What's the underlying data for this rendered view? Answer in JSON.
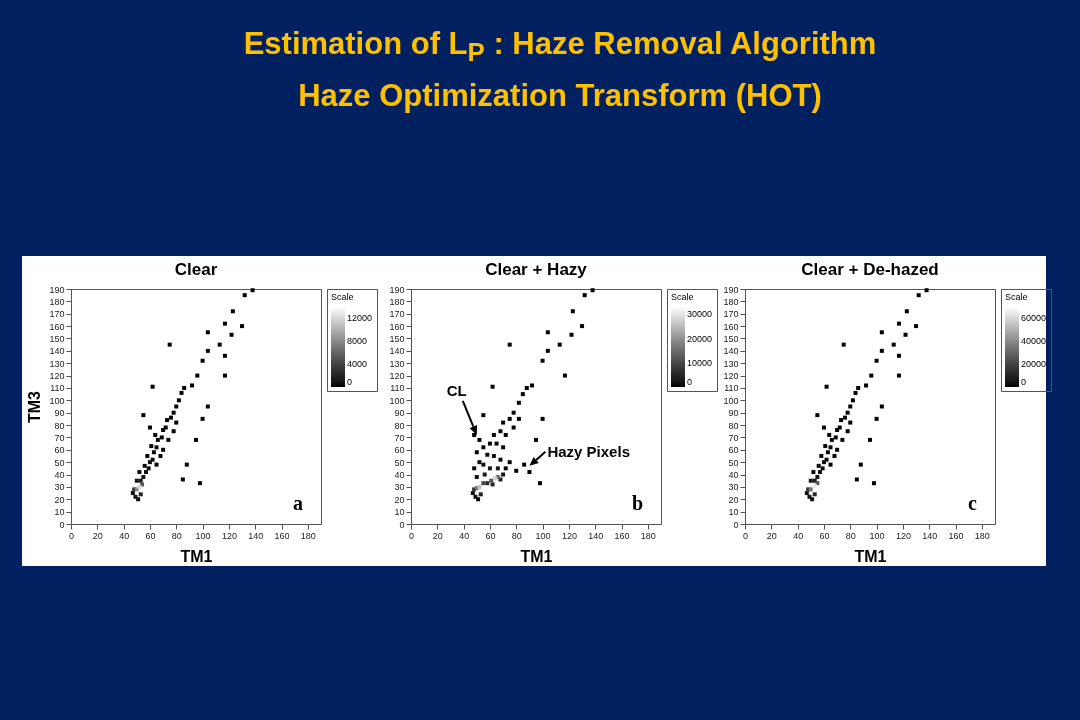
{
  "chart_data": [
    {
      "type": "other",
      "title": "Estimation of L$_{P}$ : Haze Removal Algorithm",
      "subtitle": "Haze Optimization Transform (HOT)"
    },
    {
      "type": "scatter",
      "title": "Clear",
      "xlabel": "TM1",
      "ylabel": "TM3",
      "clabel": "Scale",
      "marker": "square",
      "grid": false,
      "xlim": [
        0,
        190
      ],
      "ylim": [
        0,
        190
      ],
      "xticks": [
        0,
        20,
        40,
        60,
        80,
        100,
        120,
        140,
        160,
        180
      ],
      "yticks": [
        0,
        10,
        20,
        30,
        40,
        50,
        60,
        70,
        80,
        90,
        100,
        110,
        120,
        130,
        140,
        150,
        160,
        170,
        180,
        190
      ],
      "clim": [
        0,
        14000
      ],
      "cticks": [
        0,
        4000,
        8000,
        12000
      ],
      "annotations": [
        "a"
      ],
      "x": [
        47,
        49,
        51,
        53,
        48,
        50,
        52,
        54,
        53,
        50,
        55,
        52,
        57,
        56,
        59,
        60,
        58,
        62,
        63,
        61,
        65,
        66,
        64,
        69,
        70,
        72,
        73,
        76,
        78,
        80,
        82,
        84,
        86,
        70,
        74,
        78,
        80,
        68,
        65,
        55,
        60,
        62,
        75,
        98,
        104,
        100,
        95,
        88,
        85,
        92,
        96,
        100,
        104,
        104,
        113,
        117,
        117,
        122,
        117,
        123,
        130,
        132,
        138
      ],
      "values": [
        25,
        22,
        20,
        24,
        28,
        28,
        30,
        32,
        35,
        35,
        38,
        42,
        42,
        47,
        45,
        50,
        55,
        52,
        58,
        63,
        62,
        68,
        72,
        70,
        76,
        78,
        84,
        86,
        90,
        95,
        100,
        106,
        110,
        60,
        68,
        75,
        82,
        55,
        48,
        88,
        78,
        111,
        145,
        33,
        95,
        85,
        68,
        48,
        36,
        112,
        120,
        132,
        140,
        155,
        145,
        136,
        120,
        153,
        162,
        172,
        160,
        185,
        189
      ],
      "cvalues": [
        600,
        800,
        500,
        2000,
        3000,
        8000,
        12000,
        5000,
        1500,
        700,
        900,
        400,
        800,
        500,
        700,
        600,
        300,
        500,
        400,
        200,
        400,
        300,
        150,
        300,
        200,
        200,
        150,
        150,
        100,
        100,
        80,
        50,
        40,
        200,
        150,
        100,
        80,
        200,
        150,
        10,
        20,
        10,
        10,
        10,
        10,
        10,
        10,
        10,
        10,
        20,
        20,
        20,
        10,
        10,
        10,
        10,
        10,
        10,
        10,
        10,
        10,
        10,
        10
      ]
    },
    {
      "type": "scatter",
      "title": "Clear + Hazy",
      "xlabel": "TM1",
      "clabel": "Scale",
      "marker": "square",
      "grid": false,
      "xlim": [
        0,
        190
      ],
      "ylim": [
        0,
        190
      ],
      "xticks": [
        0,
        20,
        40,
        60,
        80,
        100,
        120,
        140,
        160,
        180
      ],
      "yticks": [
        0,
        10,
        20,
        30,
        40,
        50,
        60,
        70,
        80,
        90,
        100,
        110,
        120,
        130,
        140,
        150,
        160,
        170,
        180,
        190
      ],
      "clim": [
        0,
        33000
      ],
      "cticks": [
        0,
        10000,
        20000,
        30000
      ],
      "annotations": [
        "b",
        {
          "text": "CL",
          "x": 50,
          "y": 72
        },
        {
          "text": "Hazy Pixels",
          "x": 90,
          "y": 47
        }
      ],
      "x": [
        47,
        49,
        51,
        53,
        48,
        50,
        52,
        55,
        58,
        61,
        64,
        66,
        62,
        68,
        70,
        56,
        50,
        48,
        52,
        55,
        60,
        66,
        72,
        58,
        63,
        68,
        75,
        50,
        55,
        60,
        65,
        70,
        63,
        68,
        72,
        70,
        75,
        78,
        82,
        85,
        88,
        78,
        82,
        52,
        48,
        55,
        62,
        75,
        80,
        86,
        90,
        98,
        100,
        95,
        92,
        100,
        104,
        104,
        113,
        117,
        122,
        123,
        130,
        132,
        138
      ],
      "values": [
        25,
        22,
        20,
        24,
        28,
        29,
        30,
        33,
        33,
        35,
        37,
        38,
        32,
        36,
        40,
        40,
        38,
        45,
        50,
        48,
        45,
        45,
        45,
        56,
        55,
        52,
        50,
        58,
        62,
        65,
        65,
        62,
        72,
        75,
        72,
        82,
        85,
        90,
        98,
        105,
        110,
        78,
        85,
        68,
        72,
        88,
        111,
        145,
        43,
        48,
        42,
        33,
        85,
        68,
        112,
        132,
        140,
        155,
        145,
        120,
        153,
        172,
        160,
        185,
        189
      ],
      "cvalues": [
        1500,
        1500,
        1000,
        4000,
        6000,
        16000,
        26000,
        10000,
        6000,
        12000,
        28000,
        14000,
        5000,
        4000,
        2000,
        3000,
        1500,
        800,
        1500,
        2000,
        3000,
        2500,
        800,
        1500,
        1500,
        1200,
        500,
        400,
        600,
        800,
        800,
        700,
        500,
        500,
        400,
        300,
        300,
        200,
        150,
        100,
        60,
        200,
        100,
        80,
        20,
        10,
        10,
        10,
        20,
        20,
        20,
        10,
        10,
        10,
        20,
        20,
        10,
        10,
        10,
        10,
        10,
        10,
        10,
        10,
        10
      ]
    },
    {
      "type": "scatter",
      "title": "Clear + De-hazed",
      "xlabel": "TM1",
      "clabel": "Scale",
      "marker": "square",
      "grid": false,
      "xlim": [
        0,
        190
      ],
      "ylim": [
        0,
        190
      ],
      "xticks": [
        0,
        20,
        40,
        60,
        80,
        100,
        120,
        140,
        160,
        180
      ],
      "yticks": [
        0,
        10,
        20,
        30,
        40,
        50,
        60,
        70,
        80,
        90,
        100,
        110,
        120,
        130,
        140,
        150,
        160,
        170,
        180,
        190
      ],
      "clim": [
        0,
        70000
      ],
      "cticks": [
        0,
        20000,
        40000,
        60000
      ],
      "annotations": [
        "c"
      ],
      "x": [
        47,
        49,
        51,
        53,
        48,
        50,
        53,
        55,
        53,
        50,
        55,
        52,
        57,
        56,
        59,
        60,
        58,
        62,
        63,
        61,
        65,
        66,
        64,
        69,
        70,
        72,
        73,
        76,
        78,
        80,
        82,
        84,
        86,
        70,
        74,
        78,
        80,
        68,
        65,
        55,
        60,
        62,
        75,
        98,
        104,
        100,
        95,
        88,
        85,
        92,
        96,
        100,
        104,
        104,
        113,
        117,
        117,
        122,
        117,
        123,
        130,
        132,
        138
      ],
      "values": [
        25,
        22,
        20,
        24,
        28,
        28,
        31,
        33,
        35,
        35,
        38,
        42,
        42,
        47,
        45,
        50,
        55,
        52,
        58,
        63,
        62,
        68,
        72,
        70,
        76,
        78,
        84,
        86,
        90,
        95,
        100,
        106,
        110,
        60,
        68,
        75,
        82,
        55,
        48,
        88,
        78,
        111,
        145,
        33,
        95,
        85,
        68,
        48,
        36,
        112,
        120,
        132,
        140,
        155,
        145,
        136,
        120,
        153,
        162,
        172,
        160,
        185,
        189
      ],
      "cvalues": [
        3000,
        4000,
        2500,
        10000,
        15000,
        35000,
        65000,
        25000,
        7000,
        3500,
        4500,
        2000,
        4000,
        2500,
        3500,
        3000,
        1500,
        2500,
        2000,
        1000,
        2000,
        1500,
        800,
        1500,
        1000,
        1000,
        800,
        800,
        500,
        500,
        400,
        250,
        200,
        1000,
        800,
        500,
        400,
        1000,
        800,
        50,
        100,
        50,
        50,
        50,
        50,
        50,
        50,
        50,
        50,
        100,
        100,
        100,
        50,
        50,
        50,
        50,
        50,
        50,
        50,
        50,
        50,
        50,
        50
      ]
    }
  ]
}
